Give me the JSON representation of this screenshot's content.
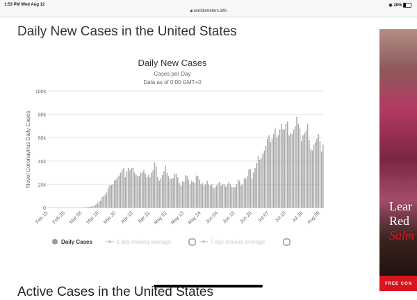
{
  "status_bar": {
    "time": "1:53 PM  Wed Aug 12",
    "url": "worldometers.info",
    "battery": "28%",
    "wifi_icon": "wifi-icon",
    "lock_icon": "lock-icon"
  },
  "page": {
    "heading": "Daily New Cases in the United States",
    "next_heading": "Active Cases in the United States"
  },
  "ad": {
    "line1": "Lear",
    "line2": "Red",
    "line3": "Salm",
    "band": "FREE CON"
  },
  "chart_data": {
    "type": "bar",
    "title": "Daily New Cases",
    "subtitle": "Cases per Day",
    "subtitle2": "Data as of 0:00 GMT+0",
    "ylabel": "Novel Coronavirus Daily Cases",
    "ylim": [
      0,
      100000
    ],
    "y_ticks": [
      "0",
      "20k",
      "40k",
      "60k",
      "80k",
      "100k"
    ],
    "x_ticks": [
      "Feb 15",
      "Feb 26",
      "Mar 08",
      "Mar 19",
      "Mar 30",
      "Apr 10",
      "Apr 21",
      "May 02",
      "May 13",
      "May 24",
      "Jun 04",
      "Jun 15",
      "Jun 26",
      "Jul 07",
      "Jul 18",
      "Jul 29",
      "Aug 09"
    ],
    "x_range": [
      "Feb 15",
      "Aug 11"
    ],
    "grid": true,
    "bar_color": "#a9a9a9",
    "legend_position": "bottom",
    "legend": [
      {
        "label": "Daily Cases",
        "active": true
      },
      {
        "label": "3-day moving average",
        "active": false
      },
      {
        "label": "7-day moving average",
        "active": false
      }
    ],
    "series": [
      {
        "name": "Daily Cases",
        "values": [
          0,
          0,
          0,
          0,
          0,
          0,
          0,
          0,
          0,
          0,
          0,
          0,
          0,
          0,
          0,
          0,
          0,
          0,
          0,
          70,
          100,
          100,
          120,
          200,
          300,
          400,
          500,
          700,
          900,
          1200,
          1800,
          2600,
          4000,
          5300,
          6000,
          9000,
          10000,
          11000,
          13000,
          17000,
          19000,
          19500,
          20000,
          23000,
          24000,
          26000,
          27500,
          30000,
          32000,
          34000,
          26000,
          31000,
          34000,
          32000,
          34000,
          34000,
          30000,
          28000,
          27000,
          27000,
          30000,
          30000,
          32000,
          29000,
          26000,
          28000,
          26000,
          30000,
          32000,
          39000,
          35000,
          26000,
          23000,
          25000,
          28000,
          31000,
          36000,
          30000,
          27000,
          24500,
          25000,
          25500,
          29000,
          29000,
          26000,
          21000,
          18500,
          22500,
          22000,
          28000,
          27000,
          24000,
          20000,
          23000,
          22000,
          21000,
          27500,
          27000,
          24000,
          20000,
          21000,
          19000,
          20000,
          23000,
          20000,
          19000,
          20000,
          17000,
          17000,
          19000,
          21000,
          22000,
          19000,
          20000,
          20000,
          18000,
          20000,
          22000,
          20000,
          17500,
          17500,
          17500,
          20000,
          24000,
          23000,
          19000,
          20000,
          25000,
          25000,
          27000,
          33000,
          33000,
          25000,
          30000,
          34000,
          38000,
          44000,
          41000,
          43000,
          46000,
          49000,
          53000,
          59000,
          62000,
          56000,
          59000,
          63000,
          68000,
          60000,
          62000,
          67000,
          72000,
          67000,
          67000,
          72000,
          74000,
          62000,
          64000,
          63000,
          67000,
          70000,
          78000,
          72000,
          68000,
          57000,
          62000,
          64000,
          66000,
          72000,
          58000,
          50000,
          49000,
          54000,
          56000,
          59000,
          63000,
          57000,
          48000,
          54000
        ]
      }
    ]
  }
}
